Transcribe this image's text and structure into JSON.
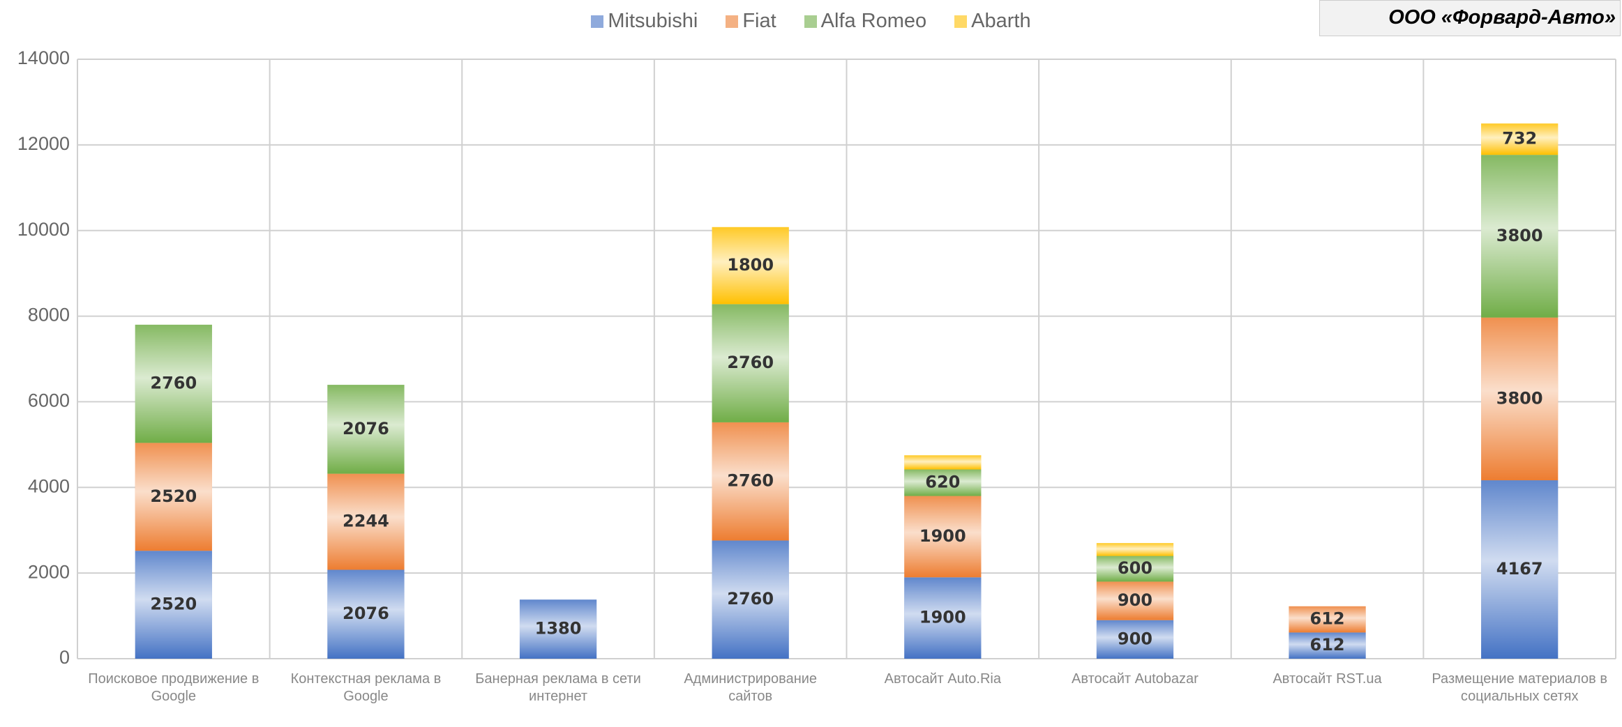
{
  "header": {
    "company": "ООО «Форвард-Авто»"
  },
  "chart_data": {
    "type": "stacked-bar",
    "categories": [
      "Поисковое продвижение в Google",
      "Контекстная реклама в Google",
      "Банерная реклама в сети интернет",
      "Администрирование сайтов",
      "Автосайт Auto.Ria",
      "Автосайт Autobazar",
      "Автосайт RST.ua",
      "Размещение материалов в социальных сетях"
    ],
    "series": [
      {
        "name": "Mitsubishi",
        "color": "#4472c4",
        "values": [
          2520,
          2076,
          1380,
          2760,
          1900,
          900,
          612,
          4167
        ]
      },
      {
        "name": "Fiat",
        "color": "#ed7d31",
        "values": [
          2520,
          2244,
          null,
          2760,
          1900,
          900,
          612,
          3800
        ]
      },
      {
        "name": "Alfa Romeo",
        "color": "#70ad47",
        "values": [
          2760,
          2076,
          null,
          2760,
          620,
          600,
          null,
          3800
        ]
      },
      {
        "name": "Abarth",
        "color": "#ffc000",
        "values": [
          null,
          null,
          null,
          1800,
          330,
          300,
          null,
          732
        ]
      }
    ],
    "ylim": [
      0,
      14000
    ],
    "yticks": [
      0,
      2000,
      4000,
      6000,
      8000,
      10000,
      12000,
      14000
    ],
    "grid": true,
    "legend": "top"
  }
}
